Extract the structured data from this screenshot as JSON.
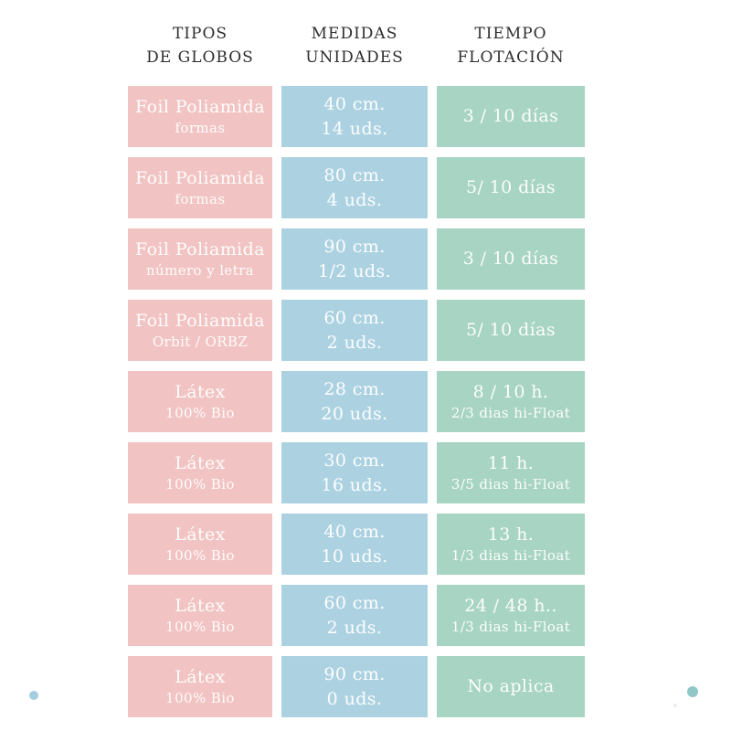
{
  "colors": {
    "background": "#ffffff",
    "tipo_cell": "#f2c3c3",
    "medida_cell": "#acd2e2",
    "tiempo_cell": "#a7d4c3",
    "cell_text": "#fdfdfd",
    "header_text": "#2e2e2e",
    "dot_left": "#a5cde2",
    "dot_right": "#92c7c7",
    "dot_speck": "#d9dcdc"
  },
  "headers": {
    "tipos": [
      "TIPOS",
      "DE GLOBOS"
    ],
    "medidas": [
      "MEDIDAS",
      "UNIDADES"
    ],
    "tiempo": [
      "TIEMPO",
      "FLOTACIÓN"
    ]
  },
  "chart_data": {
    "type": "table",
    "columns": [
      "TIPOS DE GLOBOS",
      "MEDIDAS UNIDADES",
      "TIEMPO FLOTACIÓN"
    ],
    "rows": [
      {
        "tipo": [
          "Foil Poliamida",
          "formas"
        ],
        "medida": [
          "40 cm.",
          "14 uds."
        ],
        "tiempo": [
          "3 / 10 días"
        ]
      },
      {
        "tipo": [
          "Foil Poliamida",
          "formas"
        ],
        "medida": [
          "80 cm.",
          "4 uds."
        ],
        "tiempo": [
          "5/ 10 días"
        ]
      },
      {
        "tipo": [
          "Foil Poliamida",
          "número y letra"
        ],
        "medida": [
          "90 cm.",
          "1/2 uds."
        ],
        "tiempo": [
          "3 / 10 días"
        ]
      },
      {
        "tipo": [
          "Foil Poliamida",
          "Orbit / ORBZ"
        ],
        "medida": [
          "60 cm.",
          "2 uds."
        ],
        "tiempo": [
          "5/ 10 días"
        ]
      },
      {
        "tipo": [
          "Látex",
          "100% Bio"
        ],
        "medida": [
          "28 cm.",
          "20 uds."
        ],
        "tiempo": [
          "8 / 10 h.",
          "2/3 dias hi-Float"
        ]
      },
      {
        "tipo": [
          "Látex",
          "100% Bio"
        ],
        "medida": [
          "30 cm.",
          "16 uds."
        ],
        "tiempo": [
          "11 h.",
          "3/5 dias hi-Float"
        ]
      },
      {
        "tipo": [
          "Látex",
          "100% Bio"
        ],
        "medida": [
          "40 cm.",
          "10 uds."
        ],
        "tiempo": [
          "13 h.",
          "1/3 dias hi-Float"
        ]
      },
      {
        "tipo": [
          "Látex",
          "100% Bio"
        ],
        "medida": [
          "60 cm.",
          "2 uds."
        ],
        "tiempo": [
          "24 / 48 h..",
          "1/3 dias hi-Float"
        ]
      },
      {
        "tipo": [
          "Látex",
          "100% Bio"
        ],
        "medida": [
          "90 cm.",
          "0 uds."
        ],
        "tiempo": [
          "No aplica"
        ]
      }
    ]
  }
}
